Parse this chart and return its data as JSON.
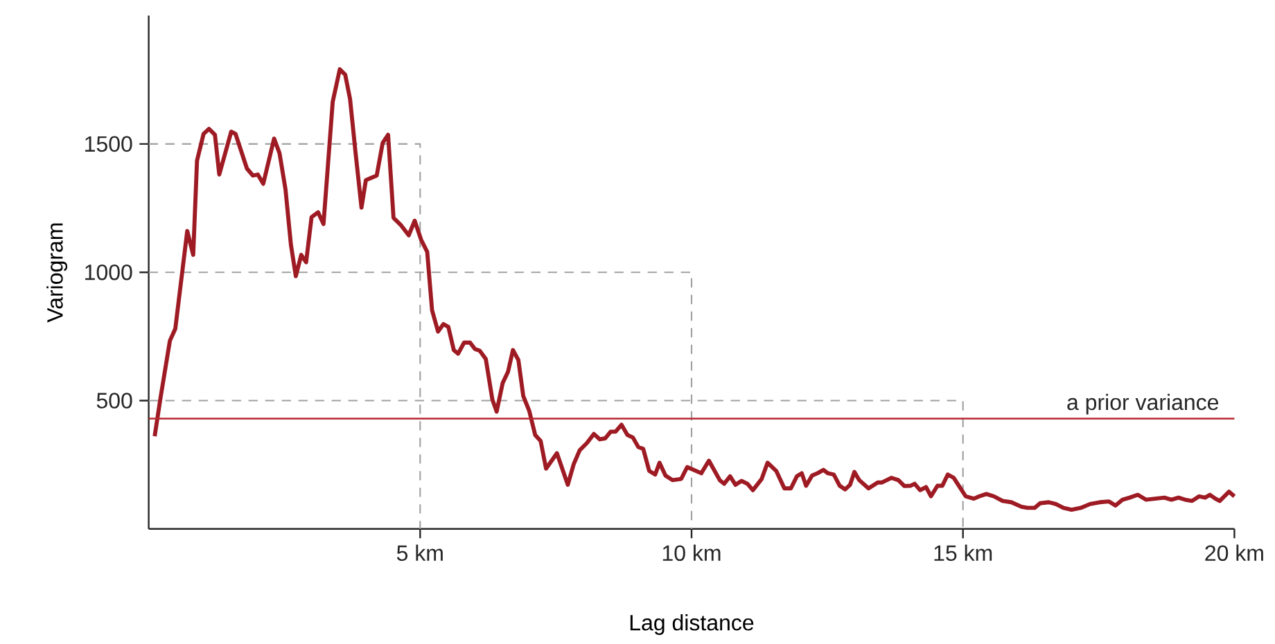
{
  "chart_data": {
    "type": "line",
    "xlabel": "Lag distance",
    "ylabel": "Variogram",
    "xlim": [
      0,
      20
    ],
    "ylim": [
      0,
      2000
    ],
    "xticks": [
      {
        "value": 5,
        "label": "5 km"
      },
      {
        "value": 10,
        "label": "10 km"
      },
      {
        "value": 15,
        "label": "15 km"
      },
      {
        "value": 20,
        "label": "20 km"
      }
    ],
    "yticks": [
      500,
      1000,
      1500
    ],
    "ref_lines": [
      {
        "axis": "y",
        "value": 430,
        "label": "a prior variance",
        "color": "#b7282e",
        "line_style": "solid"
      }
    ],
    "series": [
      {
        "color": "#a0a0a0",
        "line_style": "dashed",
        "x": [
          0,
          5,
          5
        ],
        "values": [
          1500,
          1500,
          0
        ]
      },
      {
        "color": "#a0a0a0",
        "line_style": "dashed",
        "x": [
          0,
          10,
          10
        ],
        "values": [
          1000,
          1000,
          0
        ]
      },
      {
        "color": "#a0a0a0",
        "line_style": "dashed",
        "x": [
          0,
          15,
          15
        ],
        "values": [
          500,
          500,
          0
        ]
      },
      {
        "color": "#9e1b24",
        "line_style": "solid",
        "x": [
          0.11,
          0.22,
          0.39,
          0.49,
          0.71,
          0.82,
          0.89,
          1.01,
          1.11,
          1.22,
          1.3,
          1.52,
          1.6,
          1.81,
          1.92,
          2.01,
          2.11,
          2.31,
          2.41,
          2.52,
          2.62,
          2.71,
          2.81,
          2.9,
          3.0,
          3.12,
          3.22,
          3.39,
          3.52,
          3.62,
          3.71,
          3.81,
          3.92,
          4.0,
          4.11,
          4.2,
          4.31,
          4.41,
          4.51,
          4.65,
          4.79,
          4.9,
          5.02,
          5.13,
          5.22,
          5.33,
          5.43,
          5.52,
          5.62,
          5.7,
          5.81,
          5.92,
          6.01,
          6.1,
          6.21,
          6.33,
          6.41,
          6.52,
          6.62,
          6.71,
          6.81,
          6.9,
          7.01,
          7.12,
          7.22,
          7.32,
          7.52,
          7.72,
          7.83,
          7.94,
          8.07,
          8.2,
          8.31,
          8.41,
          8.51,
          8.6,
          8.71,
          8.82,
          8.92,
          9.02,
          9.11,
          9.22,
          9.33,
          9.41,
          9.52,
          9.65,
          9.81,
          9.92,
          10.18,
          10.32,
          10.52,
          10.6,
          10.71,
          10.81,
          10.92,
          11.03,
          11.13,
          11.29,
          11.4,
          11.56,
          11.71,
          11.83,
          11.94,
          12.03,
          12.11,
          12.22,
          12.32,
          12.43,
          12.51,
          12.62,
          12.73,
          12.83,
          12.92,
          13.0,
          13.09,
          13.26,
          13.43,
          13.51,
          13.68,
          13.81,
          13.92,
          14.03,
          14.11,
          14.21,
          14.32,
          14.41,
          14.53,
          14.62,
          14.72,
          14.83,
          14.94,
          15.05,
          15.2,
          15.3,
          15.43,
          15.57,
          15.73,
          15.89,
          16.08,
          16.19,
          16.32,
          16.42,
          16.58,
          16.71,
          16.85,
          17.0,
          17.17,
          17.34,
          17.52,
          17.69,
          17.81,
          17.94,
          18.07,
          18.22,
          18.37,
          18.54,
          18.71,
          18.84,
          18.97,
          19.09,
          19.22,
          19.35,
          19.46,
          19.55,
          19.65,
          19.73,
          19.9,
          20.0
        ],
        "values": [
          361,
          514,
          733,
          780,
          1161,
          1068,
          1435,
          1539,
          1559,
          1536,
          1381,
          1548,
          1539,
          1404,
          1377,
          1381,
          1345,
          1521,
          1464,
          1323,
          1107,
          985,
          1068,
          1039,
          1215,
          1234,
          1188,
          1665,
          1791,
          1770,
          1674,
          1467,
          1252,
          1359,
          1369,
          1377,
          1504,
          1536,
          1212,
          1183,
          1144,
          1201,
          1126,
          1080,
          852,
          769,
          798,
          787,
          697,
          683,
          726,
          726,
          701,
          694,
          662,
          505,
          457,
          568,
          613,
          697,
          658,
          518,
          460,
          366,
          343,
          235,
          295,
          172,
          253,
          307,
          334,
          370,
          349,
          353,
          379,
          379,
          406,
          366,
          356,
          319,
          312,
          226,
          212,
          258,
          208,
          190,
          195,
          241,
          217,
          266,
          190,
          176,
          205,
          172,
          187,
          176,
          151,
          194,
          258,
          226,
          158,
          158,
          205,
          217,
          168,
          208,
          217,
          230,
          217,
          212,
          168,
          154,
          172,
          222,
          190,
          158,
          181,
          181,
          199,
          190,
          167,
          168,
          176,
          151,
          163,
          127,
          168,
          168,
          212,
          199,
          163,
          127,
          118,
          127,
          136,
          127,
          109,
          104,
          86,
          82,
          82,
          100,
          104,
          97,
          82,
          75,
          82,
          97,
          104,
          107,
          91,
          114,
          122,
          133,
          114,
          118,
          122,
          114,
          122,
          114,
          109,
          127,
          122,
          133,
          118,
          109,
          145,
          127
        ]
      }
    ]
  }
}
